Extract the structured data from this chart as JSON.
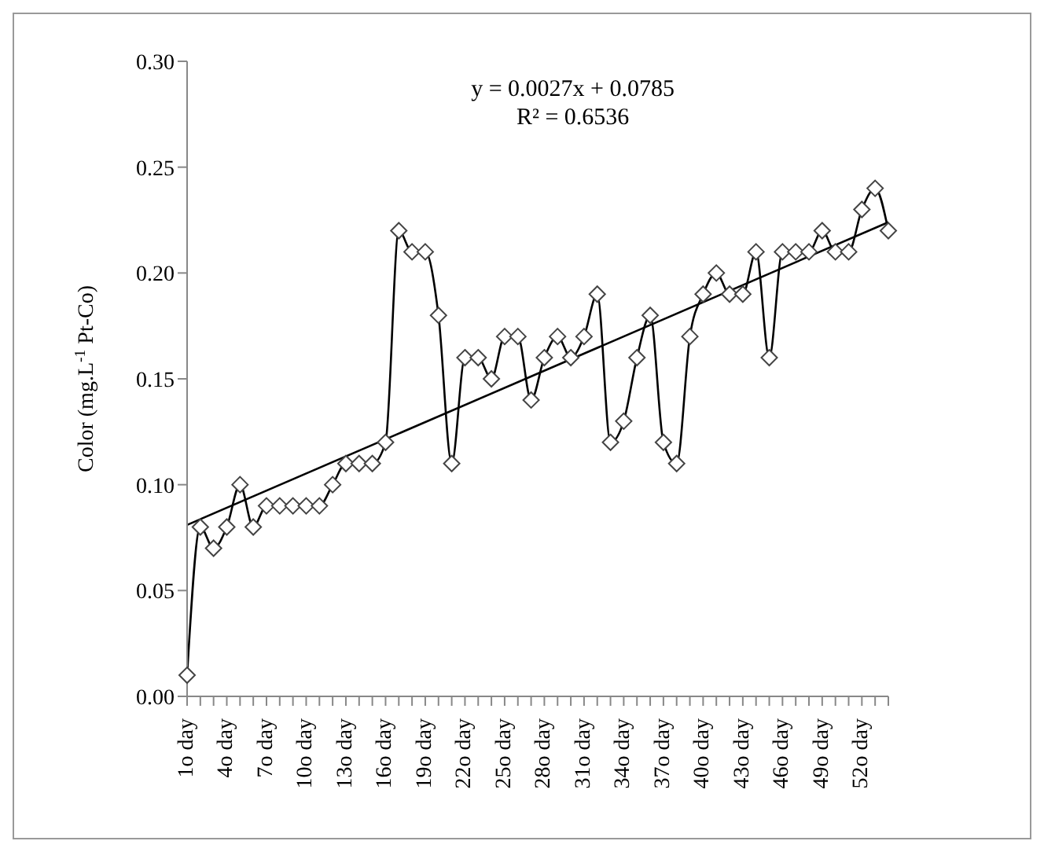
{
  "chart_data": {
    "type": "line",
    "ylabel": "Color (mg.L$^{-1}$ Pt-Co)",
    "categories": [
      "1o day",
      null,
      null,
      "4o day",
      null,
      null,
      "7o day",
      null,
      null,
      "10o day",
      null,
      null,
      "13o day",
      null,
      null,
      "16o day",
      null,
      null,
      "19o day",
      null,
      null,
      "22o day",
      null,
      null,
      "25o day",
      null,
      null,
      "28o day",
      null,
      null,
      "31o day",
      null,
      null,
      "34o day",
      null,
      null,
      "37o day",
      null,
      null,
      "40o day",
      null,
      null,
      "43o day",
      null,
      null,
      "46o day",
      null,
      null,
      "49o day",
      null,
      null,
      "52o day",
      null,
      null
    ],
    "series": [
      {
        "color": "#000000",
        "marker": "diamond",
        "values": [
          0.01,
          0.08,
          0.07,
          0.08,
          0.1,
          0.08,
          0.09,
          0.09,
          0.09,
          0.09,
          0.09,
          0.1,
          0.11,
          0.11,
          0.11,
          0.12,
          0.22,
          0.21,
          0.21,
          0.18,
          0.11,
          0.16,
          0.16,
          0.15,
          0.17,
          0.17,
          0.14,
          0.16,
          0.17,
          0.16,
          0.17,
          0.19,
          0.12,
          0.13,
          0.16,
          0.18,
          0.12,
          0.11,
          0.17,
          0.19,
          0.2,
          0.19,
          0.19,
          0.21,
          0.16,
          0.21,
          0.21,
          0.21,
          0.22,
          0.21,
          0.21,
          0.23,
          0.24,
          0.22
        ]
      },
      {
        "color": "#000000",
        "marker": "none",
        "values": [
          0.081,
          null,
          null,
          null,
          null,
          null,
          null,
          null,
          null,
          null,
          null,
          null,
          null,
          null,
          null,
          null,
          null,
          null,
          null,
          null,
          null,
          null,
          null,
          null,
          null,
          null,
          null,
          null,
          null,
          null,
          null,
          null,
          null,
          null,
          null,
          null,
          null,
          null,
          null,
          null,
          null,
          null,
          null,
          null,
          null,
          null,
          null,
          null,
          null,
          null,
          null,
          null,
          null,
          0.224
        ]
      }
    ],
    "ylim": [
      0,
      0.3
    ],
    "yticks": [
      {
        "value": 0,
        "label": "0.00"
      },
      {
        "value": 0.05,
        "label": "0.05"
      },
      {
        "value": 0.1,
        "label": "0.10"
      },
      {
        "value": 0.15,
        "label": "0.15"
      },
      {
        "value": 0.2,
        "label": "0.20"
      },
      {
        "value": 0.25,
        "label": "0.25"
      },
      {
        "value": 0.3,
        "label": "0.30"
      }
    ],
    "annotations": [
      "y = 0.0027x + 0.0785",
      "R² = 0.6536"
    ],
    "grid": false,
    "legend": false
  }
}
